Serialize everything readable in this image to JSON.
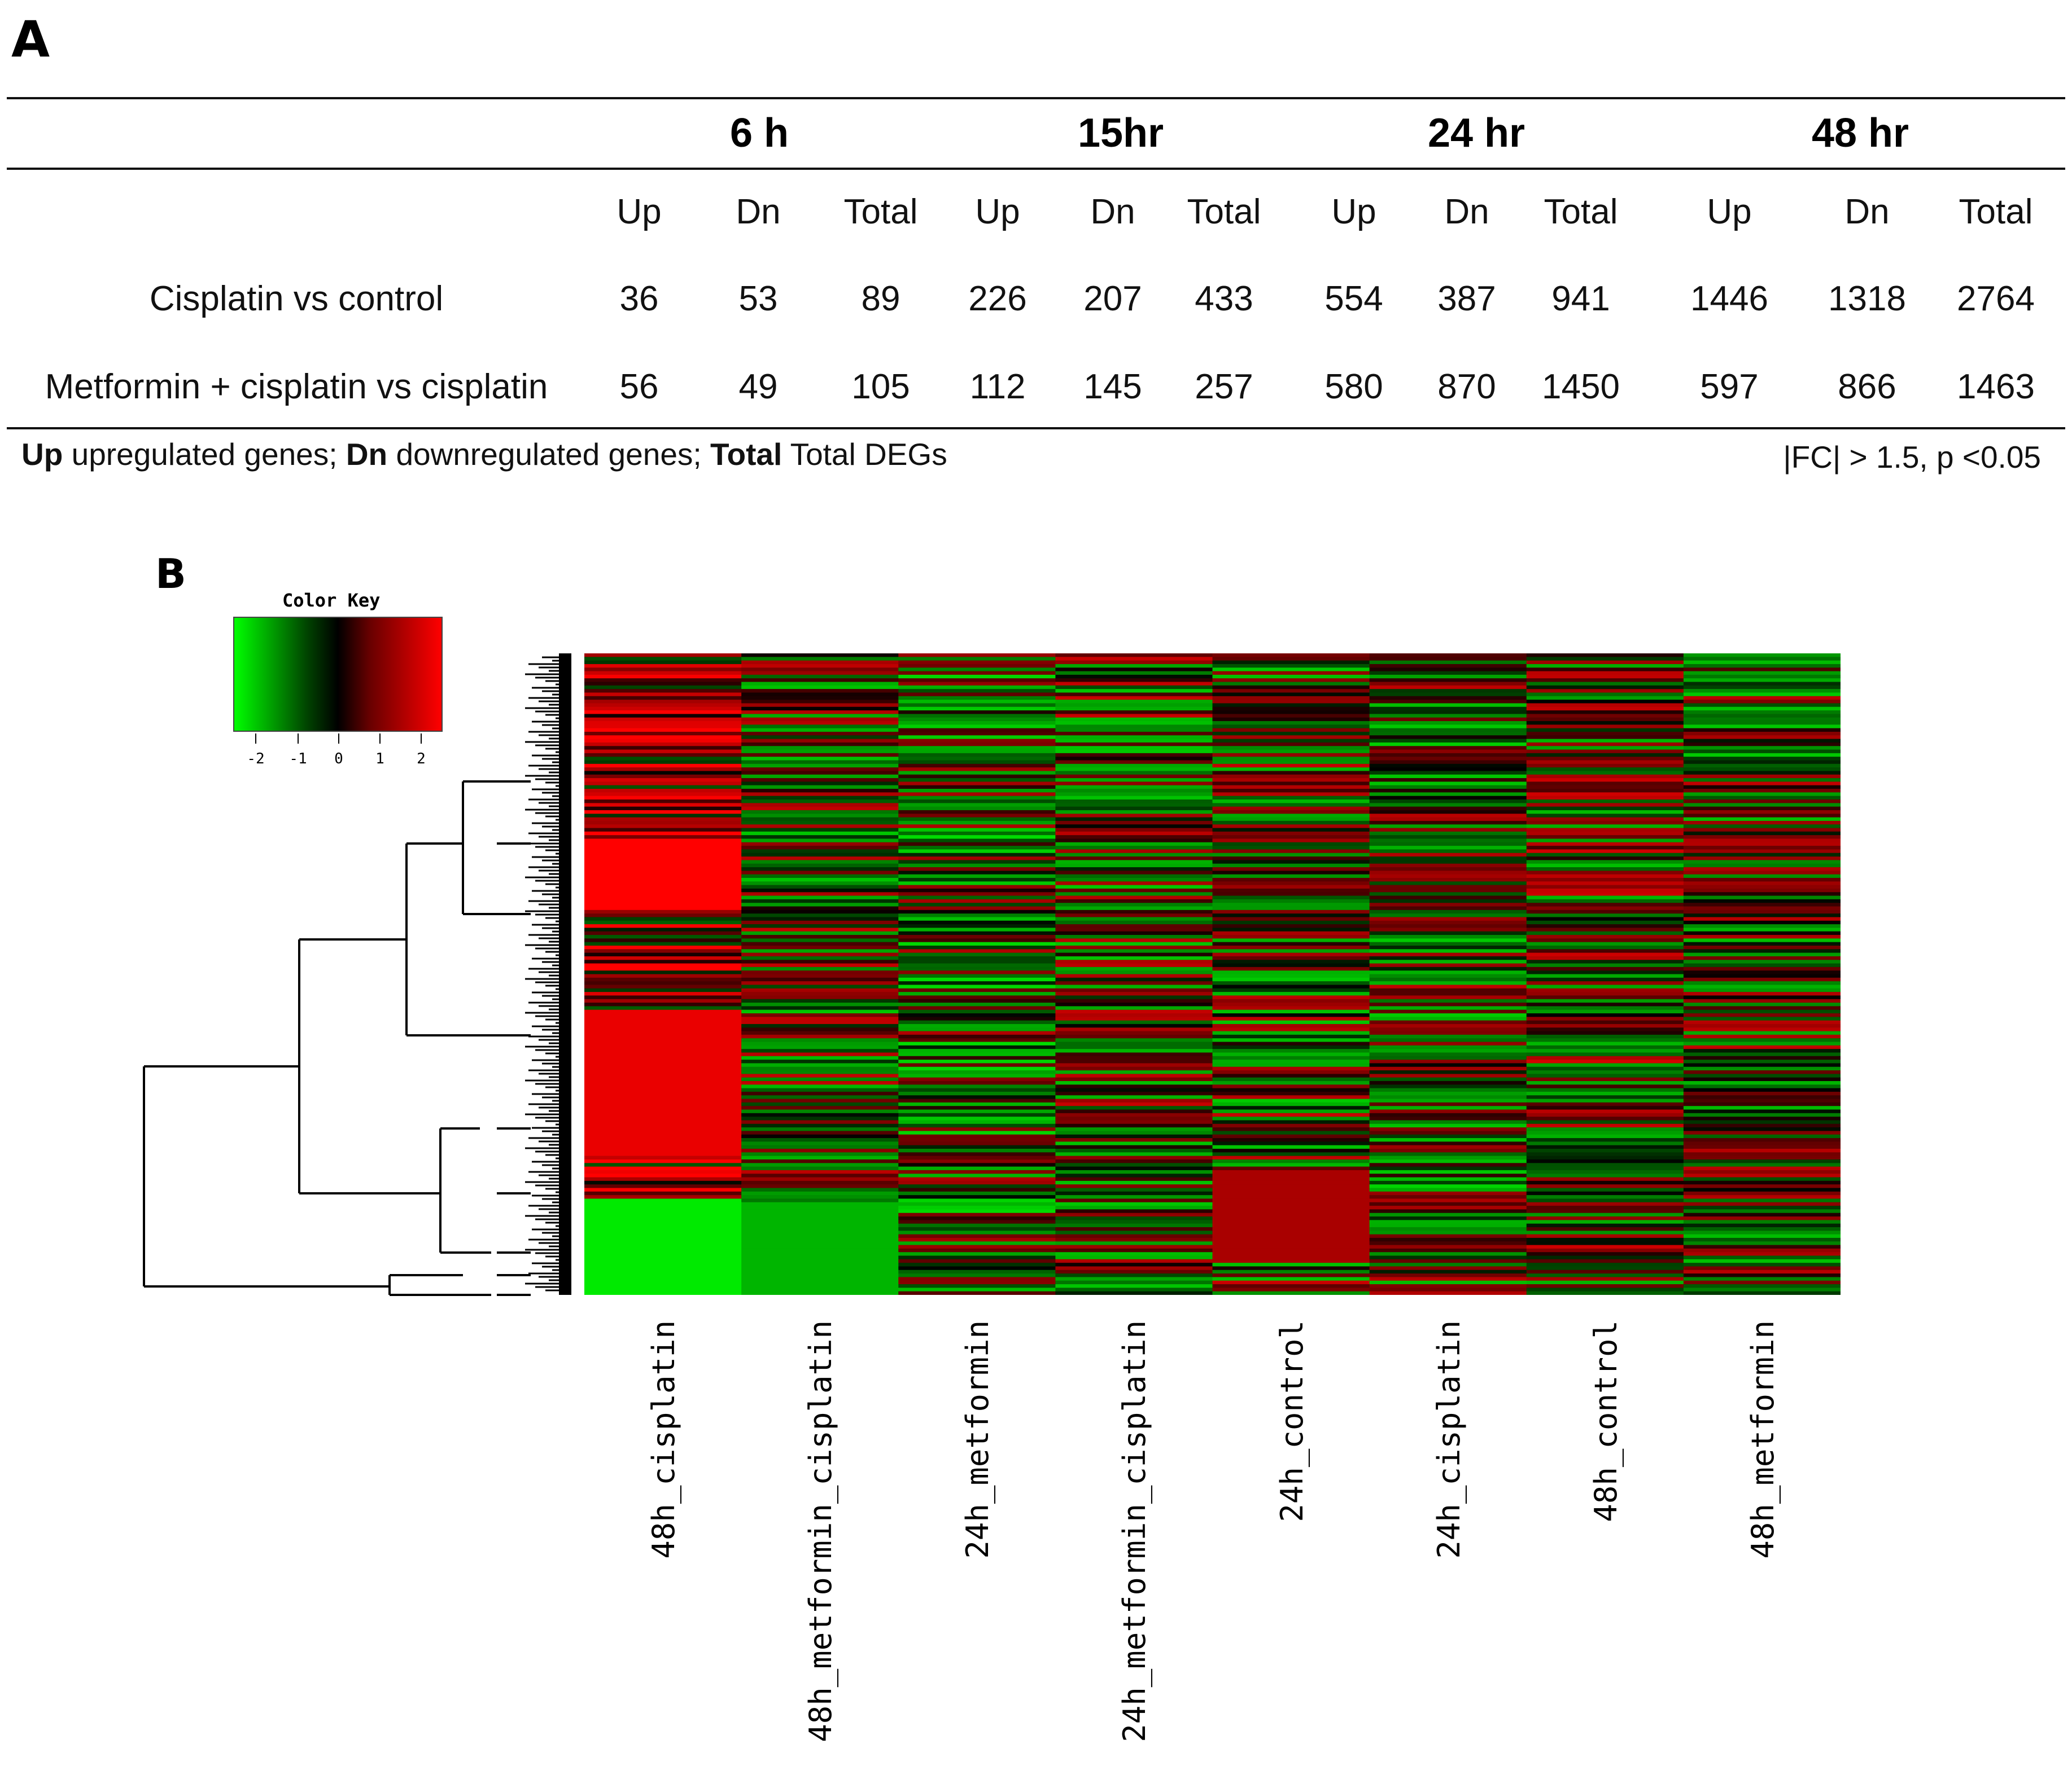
{
  "panel_a": {
    "label": "A",
    "time_headers": [
      "6 h",
      "15hr",
      "24 hr",
      "48 hr"
    ],
    "sub_headers": [
      "Up",
      "Dn",
      "Total"
    ],
    "rows": [
      {
        "label": "Cisplatin vs control",
        "values": [
          "36",
          "53",
          "89",
          "226",
          "207",
          "433",
          "554",
          "387",
          "941",
          "1446",
          "1318",
          "2764"
        ]
      },
      {
        "label": "Metformin + cisplatin vs cisplatin",
        "values": [
          "56",
          "49",
          "105",
          "112",
          "145",
          "257",
          "580",
          "870",
          "1450",
          "597",
          "866",
          "1463"
        ]
      }
    ],
    "footnote": {
      "up_bold": "Up",
      "up_text": "upregulated genes;",
      "dn_bold": "Dn",
      "dn_text": "downregulated genes;",
      "total_bold": "Total",
      "total_text": "Total DEGs",
      "threshold": "|FC| > 1.5, p <0.05"
    }
  },
  "panel_b": {
    "label": "B",
    "color_key_title": "Color Key",
    "color_key_ticks": [
      "-2",
      "-1",
      "0",
      "1",
      "2"
    ],
    "low_color": "#00ff00",
    "mid_color": "#000000",
    "high_color": "#ff0000"
  },
  "chart_data": {
    "type": "heatmap",
    "title": "Color Key",
    "columns": [
      "48h_cisplatin",
      "48h_metformin_cisplatin",
      "24h_metformin",
      "24h_metformin_cisplatin",
      "24h_control",
      "24h_cisplatin",
      "48h_control",
      "48h_metformin"
    ],
    "value_range": [
      -2,
      2
    ],
    "color_scale": [
      "green",
      "black",
      "red"
    ],
    "row_dendrogram": true,
    "rows": "approx. 180 genes (individual values not readable)"
  }
}
